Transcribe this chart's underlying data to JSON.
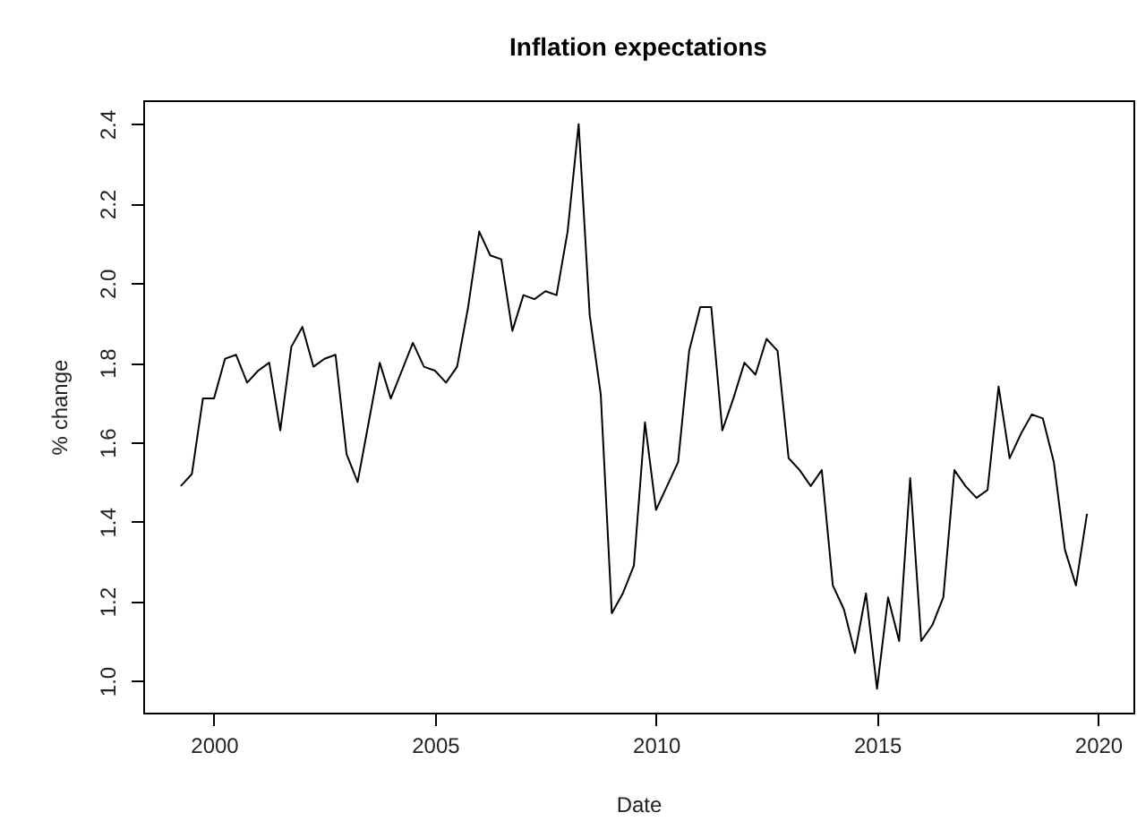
{
  "chart_data": {
    "type": "line",
    "title": "Inflation expectations",
    "xlabel": "Date",
    "ylabel": "% change",
    "x": [
      1999.25,
      1999.5,
      1999.75,
      2000.0,
      2000.25,
      2000.5,
      2000.75,
      2001.0,
      2001.25,
      2001.5,
      2001.75,
      2002.0,
      2002.25,
      2002.5,
      2002.75,
      2003.0,
      2003.25,
      2003.5,
      2003.75,
      2004.0,
      2004.25,
      2004.5,
      2004.75,
      2005.0,
      2005.25,
      2005.5,
      2005.75,
      2006.0,
      2006.25,
      2006.5,
      2006.75,
      2007.0,
      2007.25,
      2007.5,
      2007.75,
      2008.0,
      2008.25,
      2008.5,
      2008.75,
      2009.0,
      2009.25,
      2009.5,
      2009.75,
      2010.0,
      2010.25,
      2010.5,
      2010.75,
      2011.0,
      2011.25,
      2011.5,
      2011.75,
      2012.0,
      2012.25,
      2012.5,
      2012.75,
      2013.0,
      2013.25,
      2013.5,
      2013.75,
      2014.0,
      2014.25,
      2014.5,
      2014.75,
      2015.0,
      2015.25,
      2015.5,
      2015.75,
      2016.0,
      2016.25,
      2016.5,
      2016.75,
      2017.0,
      2017.25,
      2017.5,
      2017.75,
      2018.0,
      2018.25,
      2018.5,
      2018.75,
      2019.0,
      2019.25,
      2019.5,
      2019.75
    ],
    "series": [
      {
        "color": "#000000",
        "values": [
          1.49,
          1.52,
          1.71,
          1.71,
          1.81,
          1.82,
          1.75,
          1.78,
          1.8,
          1.63,
          1.84,
          1.89,
          1.79,
          1.81,
          1.82,
          1.57,
          1.5,
          1.65,
          1.8,
          1.71,
          1.78,
          1.85,
          1.79,
          1.78,
          1.75,
          1.79,
          1.94,
          2.13,
          2.07,
          2.06,
          1.88,
          1.97,
          1.96,
          1.98,
          1.97,
          2.13,
          2.4,
          1.92,
          1.72,
          1.17,
          1.22,
          1.29,
          1.65,
          1.43,
          1.49,
          1.55,
          1.83,
          1.94,
          1.94,
          1.63,
          1.71,
          1.8,
          1.77,
          1.86,
          1.83,
          1.56,
          1.53,
          1.49,
          1.53,
          1.24,
          1.18,
          1.07,
          1.22,
          0.98,
          1.21,
          1.1,
          1.51,
          1.1,
          1.14,
          1.21,
          1.53,
          1.49,
          1.46,
          1.48,
          1.74,
          1.56,
          1.62,
          1.67,
          1.66,
          1.55,
          1.33,
          1.24,
          1.42
        ]
      }
    ],
    "xlim": [
      1998.4,
      2020.8
    ],
    "ylim": [
      0.92,
      2.46
    ],
    "xticks": [
      2000,
      2005,
      2010,
      2015,
      2020
    ],
    "yticks": [
      {
        "value": 1,
        "label": "1.0"
      },
      1.2,
      1.4,
      1.6,
      1.8,
      {
        "value": 2,
        "label": "2.0"
      },
      2.2,
      2.4
    ],
    "grid": false,
    "legend": false,
    "line_style": "solid",
    "marker": "none"
  }
}
